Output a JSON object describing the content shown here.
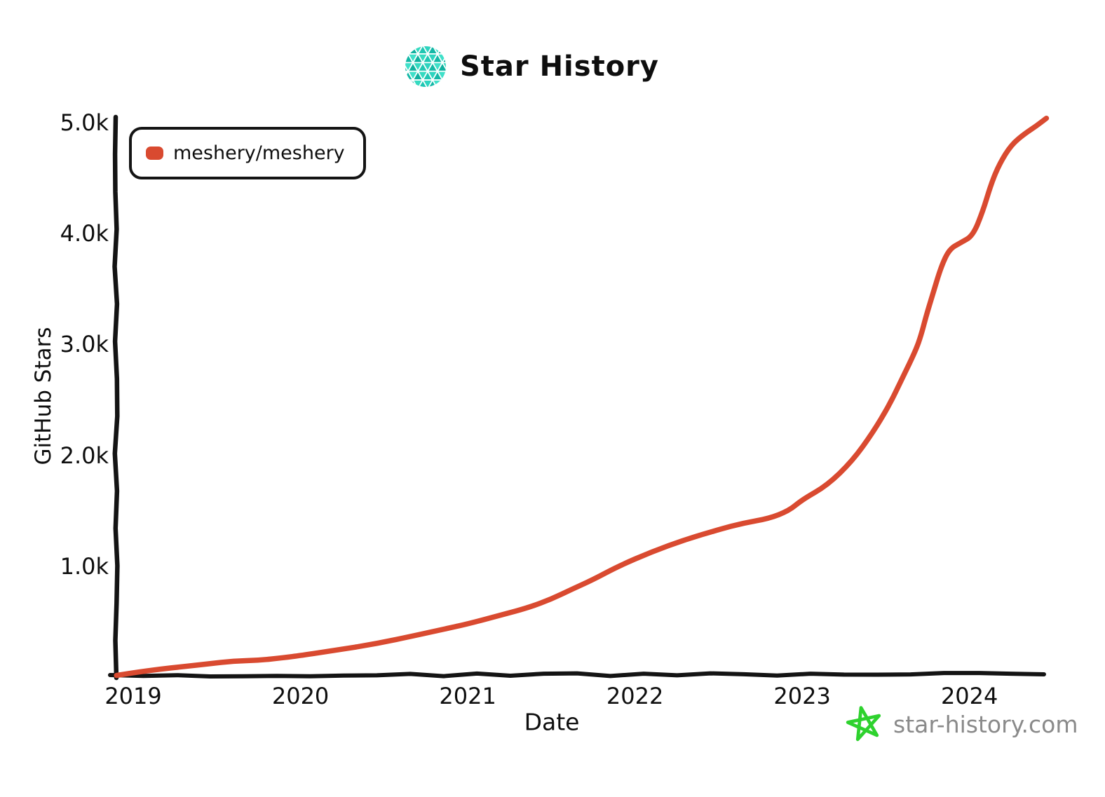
{
  "header": {
    "title": "Star History",
    "logo_icon": "star-history-logo"
  },
  "legend": {
    "position": "top-left",
    "items": [
      {
        "label": "meshery/meshery",
        "color": "#d94a30"
      }
    ]
  },
  "footer": {
    "site_label": "star-history.com",
    "star_icon": "star-doodle"
  },
  "colors": {
    "axis": "#141414",
    "series_red": "#d94a30",
    "logo_palette": [
      "#14b8a6",
      "#2dd4bf",
      "#0fb09e",
      "#3fe0c9",
      "#1fc6b2",
      "#35dac0"
    ],
    "star_green": "#2ed22e",
    "credit_gray": "#8a8a8a"
  },
  "chart_data": {
    "type": "line",
    "title": "Star History",
    "xlabel": "Date",
    "ylabel": "GitHub Stars",
    "grid": false,
    "legend_position": "top-left",
    "xlim": [
      2018.895,
      2024.45
    ],
    "ylim": [
      0,
      5060
    ],
    "x_ticks": [
      {
        "label": "2019",
        "value": 2019
      },
      {
        "label": "2020",
        "value": 2020
      },
      {
        "label": "2021",
        "value": 2021
      },
      {
        "label": "2022",
        "value": 2022
      },
      {
        "label": "2023",
        "value": 2023
      },
      {
        "label": "2024",
        "value": 2024
      }
    ],
    "y_ticks": [
      {
        "label": "1.0k",
        "value": 1000
      },
      {
        "label": "2.0k",
        "value": 2000
      },
      {
        "label": "3.0k",
        "value": 3000
      },
      {
        "label": "4.0k",
        "value": 4000
      },
      {
        "label": "5.0k",
        "value": 5000
      }
    ],
    "series": [
      {
        "name": "meshery/meshery",
        "color": "#d94a30",
        "points": [
          [
            2018.9,
            15
          ],
          [
            2019.0,
            40
          ],
          [
            2019.15,
            70
          ],
          [
            2019.3,
            95
          ],
          [
            2019.45,
            120
          ],
          [
            2019.6,
            145
          ],
          [
            2019.75,
            152
          ],
          [
            2019.9,
            175
          ],
          [
            2020.0,
            195
          ],
          [
            2020.2,
            240
          ],
          [
            2020.45,
            300
          ],
          [
            2020.7,
            380
          ],
          [
            2020.85,
            430
          ],
          [
            2021.0,
            480
          ],
          [
            2021.2,
            560
          ],
          [
            2021.37,
            630
          ],
          [
            2021.5,
            705
          ],
          [
            2021.62,
            790
          ],
          [
            2021.75,
            880
          ],
          [
            2021.9,
            1000
          ],
          [
            2022.1,
            1130
          ],
          [
            2022.3,
            1240
          ],
          [
            2022.5,
            1330
          ],
          [
            2022.65,
            1390
          ],
          [
            2022.8,
            1430
          ],
          [
            2022.92,
            1500
          ],
          [
            2023.0,
            1600
          ],
          [
            2023.15,
            1730
          ],
          [
            2023.3,
            1950
          ],
          [
            2023.42,
            2200
          ],
          [
            2023.52,
            2450
          ],
          [
            2023.6,
            2700
          ],
          [
            2023.68,
            2950
          ],
          [
            2023.71,
            3080
          ],
          [
            2023.74,
            3250
          ],
          [
            2023.78,
            3450
          ],
          [
            2023.83,
            3700
          ],
          [
            2023.88,
            3860
          ],
          [
            2023.95,
            3920
          ],
          [
            2024.02,
            3980
          ],
          [
            2024.08,
            4200
          ],
          [
            2024.13,
            4450
          ],
          [
            2024.18,
            4630
          ],
          [
            2024.25,
            4800
          ],
          [
            2024.33,
            4900
          ],
          [
            2024.4,
            4970
          ],
          [
            2024.46,
            5040
          ]
        ]
      }
    ]
  }
}
